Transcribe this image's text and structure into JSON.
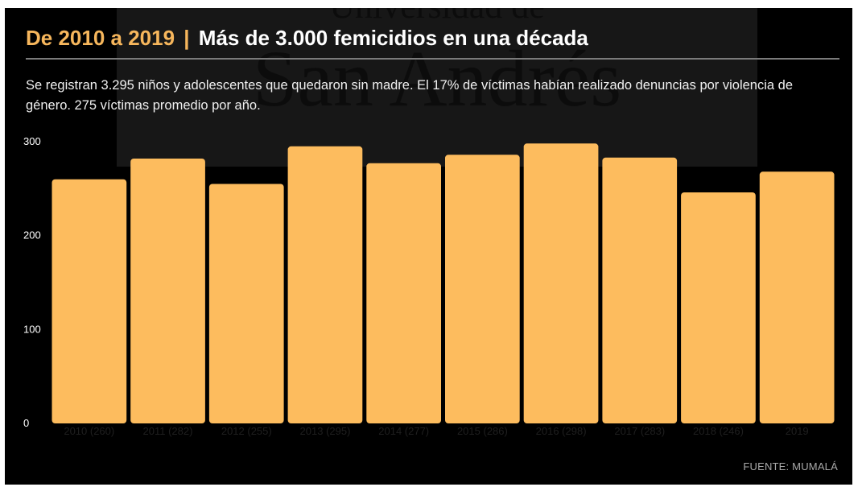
{
  "header": {
    "title_accent": "De 2010 a 2019",
    "title_separator": "|",
    "title_main": "Más de 3.000 femicidios en una década",
    "subtitle": "Se registran 3.295 niños y adolescentes que quedaron sin madre. El 17% de víctimas habían realizado denuncias por violencia de género. 275 víctimas promedio por año."
  },
  "watermark": {
    "line1": "Universidad de",
    "line2": "San Andrés"
  },
  "source": "FUENTE: MUMALÁ",
  "colors": {
    "background": "#000000",
    "bar": "#fdbc5e",
    "accent": "#f6b65c",
    "axis_text": "#ffffff"
  },
  "chart_data": {
    "type": "bar",
    "categories": [
      "2010 (260)",
      "2011 (282)",
      "2012 (255)",
      "2013 (295)",
      "2014 (277)",
      "2015 (286)",
      "2016 (298)",
      "2017 (283)",
      "2018 (246)",
      "2019"
    ],
    "values": [
      260,
      282,
      255,
      295,
      277,
      286,
      298,
      283,
      246,
      268
    ],
    "title": "",
    "xlabel": "",
    "ylabel": "",
    "ylim": [
      0,
      300
    ],
    "yticks": [
      0,
      100,
      200,
      300
    ],
    "grid": false,
    "legend": "none"
  }
}
